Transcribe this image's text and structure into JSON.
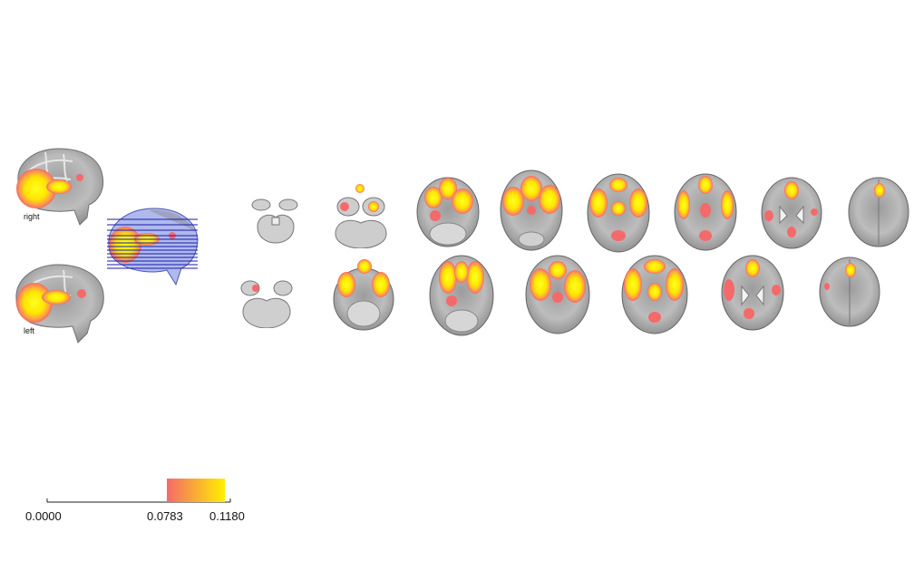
{
  "sagittal_labels": {
    "right": "right",
    "left": "left"
  },
  "colorbar": {
    "ticks": [
      "0.0000",
      "0.0783",
      "0.1180"
    ],
    "tick_values": [
      0.0,
      0.0783,
      0.118
    ],
    "gradient_from": "#f46a6a",
    "gradient_to": "#ffef00",
    "threshold_fraction": 0.6635
  },
  "colors": {
    "background": "#ffffff",
    "brain_gray": "#c9c9c9",
    "brain_edge": "#6f6f6f",
    "slice_lines": "#1a1aa8",
    "glass_brain": "#6f7fe0",
    "activation_low": "#f46a6a",
    "activation_high": "#ffef00"
  },
  "axial_rows": [
    {
      "row": "top",
      "slice_count": 8
    },
    {
      "row": "bottom",
      "slice_count": 7
    }
  ]
}
